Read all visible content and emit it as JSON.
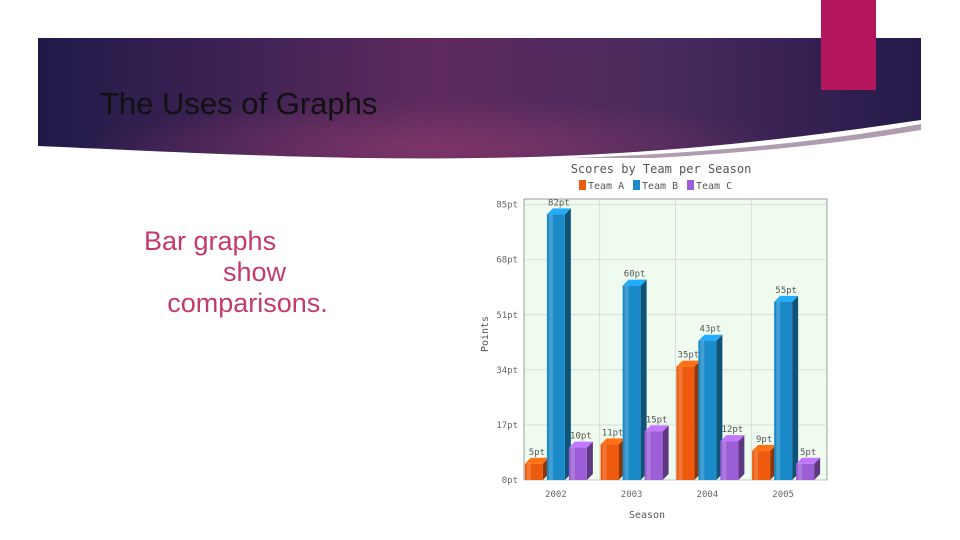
{
  "slide": {
    "title": "The Uses of Graphs",
    "bullet_line1": "Bar graphs",
    "bullet_line2": "show",
    "bullet_line3": "comparisons.",
    "colors": {
      "banner_dark": "#241a4a",
      "banner_light": "#6e3365",
      "accent": "#b5175e",
      "bullet_text": "#c43a6a"
    }
  },
  "chart_data": {
    "type": "bar",
    "title": "Scores by Team per Season",
    "xlabel": "Season",
    "ylabel": "Points",
    "categories": [
      "2002",
      "2003",
      "2004",
      "2005"
    ],
    "series": [
      {
        "name": "Team A",
        "color": "#ee5a0e",
        "values": [
          5,
          11,
          35,
          9
        ],
        "labels": [
          "5pt",
          "11pt",
          "35pt",
          "9pt"
        ]
      },
      {
        "name": "Team B",
        "color": "#1a8ac9",
        "values": [
          82,
          60,
          43,
          55
        ],
        "labels": [
          "82pt",
          "60pt",
          "43pt",
          "55pt"
        ]
      },
      {
        "name": "Team C",
        "color": "#9c5ed6",
        "values": [
          10,
          15,
          12,
          5
        ],
        "labels": [
          "10pt",
          "15pt",
          "12pt",
          "5pt"
        ]
      }
    ],
    "yticks": [
      "0pt",
      "17pt",
      "34pt",
      "51pt",
      "68pt",
      "85pt"
    ],
    "ylim": [
      0,
      85
    ],
    "grid": true,
    "legend": "top"
  }
}
